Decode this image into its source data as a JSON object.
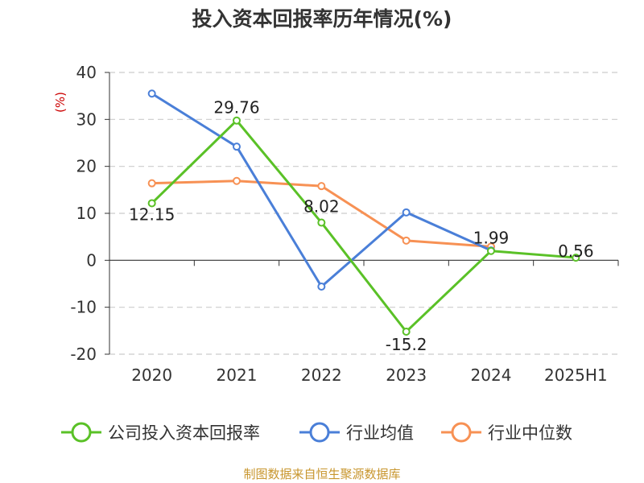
{
  "title": "投入资本回报率历年情况(%)",
  "source_text": "制图数据来自恒生聚源数据库",
  "chart_data": {
    "type": "line",
    "title": "投入资本回报率历年情况(%)",
    "ylabel": "(%)",
    "xlabel": "",
    "categories": [
      "2020",
      "2021",
      "2022",
      "2023",
      "2024",
      "2025H1"
    ],
    "ylim": [
      -20,
      40
    ],
    "yticks": [
      40,
      30,
      20,
      10,
      0,
      -10,
      -20
    ],
    "grid": true,
    "legend_position": "bottom",
    "series": [
      {
        "name": "公司投入资本回报率",
        "color": "#5ac127",
        "values": [
          12.15,
          29.76,
          8.02,
          -15.2,
          1.99,
          0.56
        ],
        "labels": [
          "12.15",
          "29.76",
          "8.02",
          "-15.2",
          "1.99",
          "0.56"
        ]
      },
      {
        "name": "行业均值",
        "color": "#4a7fd8",
        "values": [
          35.5,
          24.2,
          -5.6,
          10.2,
          2.1,
          null
        ]
      },
      {
        "name": "行业中位数",
        "color": "#f79154",
        "values": [
          16.4,
          16.9,
          15.8,
          4.2,
          2.9,
          null
        ]
      }
    ]
  }
}
